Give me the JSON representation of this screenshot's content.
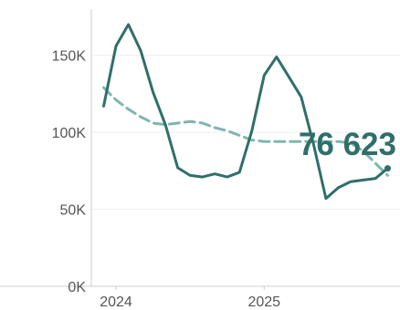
{
  "chart_data": {
    "type": "line",
    "x_start": "2023-12",
    "x_ticks": [
      {
        "label": "2024",
        "value": "2024-01"
      },
      {
        "label": "2025",
        "value": "2025-01"
      }
    ],
    "y_ticks": [
      {
        "label": "0K",
        "value": 0
      },
      {
        "label": "50K",
        "value": 50000
      },
      {
        "label": "100K",
        "value": 100000
      },
      {
        "label": "150K",
        "value": 150000
      }
    ],
    "ylim": [
      0,
      180000
    ],
    "xlim": [
      "2023-11",
      "2025-12"
    ],
    "grid": true,
    "series": [
      {
        "style": "solid",
        "color": "#2f6f6a",
        "values": [
          117000,
          156000,
          170000,
          153000,
          126000,
          105000,
          77000,
          72000,
          71000,
          73000,
          71000,
          74000,
          101000,
          137000,
          149000,
          136000,
          123000,
          92000,
          57000,
          64000,
          68000,
          69000,
          70000,
          76623
        ]
      },
      {
        "style": "dashed",
        "color": "#7fb6ae",
        "values": [
          129000,
          121000,
          115000,
          110000,
          106000,
          105000,
          106000,
          107000,
          106000,
          103000,
          101000,
          98000,
          95000,
          94000,
          94000,
          94000,
          94000,
          94000,
          94000,
          94000,
          93000,
          88000,
          80000,
          72000
        ]
      }
    ],
    "callout": {
      "text": "76 623",
      "color": "#2f6f6a"
    }
  }
}
